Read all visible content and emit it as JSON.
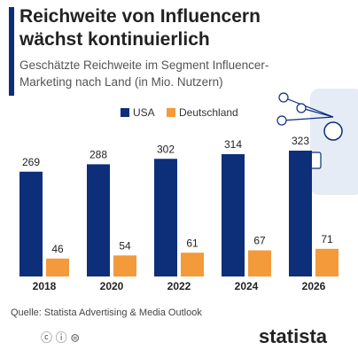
{
  "chart_data": {
    "type": "bar",
    "title": "Reichweite von Influencern wächst kontinuierlich",
    "subtitle": "Geschätzte Reichweite im Segment Influencer-Marketing nach Land (in Mio. Nutzern)",
    "categories": [
      "2018",
      "2020",
      "2022",
      "2024",
      "2026"
    ],
    "series": [
      {
        "name": "USA",
        "color": "#0d2f7a",
        "values": [
          269,
          288,
          302,
          314,
          323
        ]
      },
      {
        "name": "Deutschland",
        "color": "#f39a3a",
        "values": [
          46,
          54,
          61,
          67,
          71
        ]
      }
    ],
    "source": "Quelle: Statista Advertising & Media Outlook",
    "brand": "statista"
  }
}
